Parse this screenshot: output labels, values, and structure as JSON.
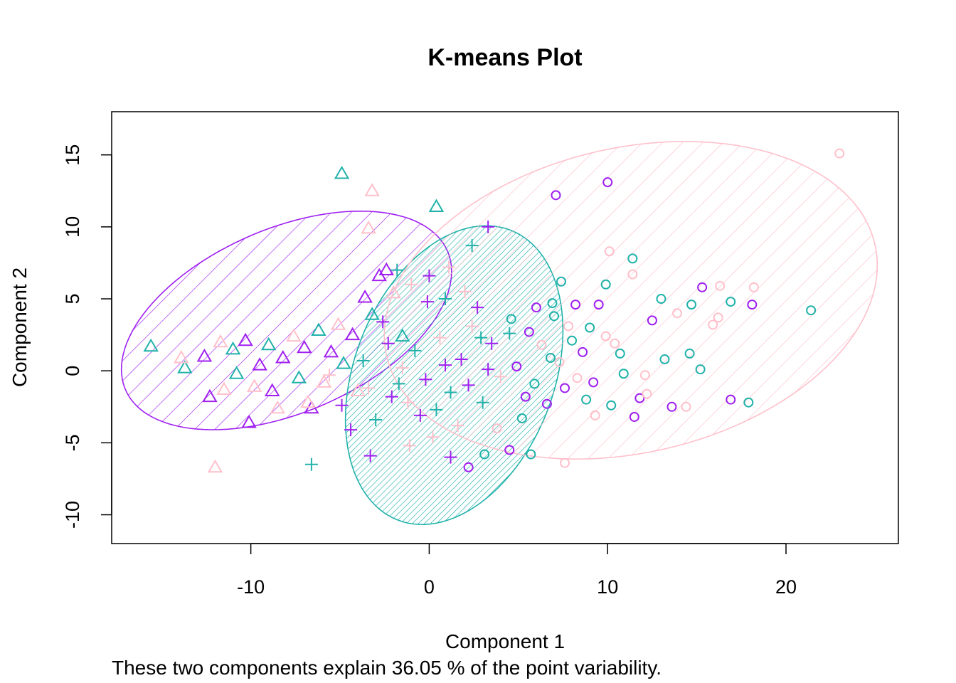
{
  "chart_data": {
    "type": "scatter",
    "title": "K-means Plot",
    "xlabel": "Component 1",
    "ylabel": "Component 2",
    "subtitle": "These two components explain 36.05 % of the point variability.",
    "xlim": [
      -17.8,
      26.3
    ],
    "ylim": [
      -12.0,
      18.0
    ],
    "x_ticks": [
      -10,
      0,
      10,
      20
    ],
    "x_tick_labels": [
      "-10",
      "0",
      "10",
      "20"
    ],
    "y_ticks": [
      -10,
      -5,
      0,
      5,
      10,
      15
    ],
    "y_tick_labels": [
      "-10",
      "-5",
      "0",
      "5",
      "10",
      "15"
    ],
    "grid": false,
    "legend": "none",
    "colors": {
      "purple": "#a020f0",
      "teal": "#20b2aa",
      "pink": "#ffc0cb",
      "axis": "#000000"
    },
    "clusters": [
      {
        "id": 1,
        "symbol": "triangle",
        "ellipse": {
          "center": [
            -8.0,
            3.5
          ],
          "semi_axes": [
            10.3,
            6.1
          ],
          "angle_deg": 33,
          "color": "#a020f0",
          "shade_density": "sparse"
        },
        "points": [
          {
            "x": -15.6,
            "y": 1.7,
            "c": "teal"
          },
          {
            "x": -4.9,
            "y": 13.7,
            "c": "teal"
          },
          {
            "x": -3.2,
            "y": 12.5,
            "c": "pink"
          },
          {
            "x": 0.4,
            "y": 11.4,
            "c": "teal"
          },
          {
            "x": -3.4,
            "y": 9.9,
            "c": "pink"
          },
          {
            "x": -12.0,
            "y": -6.7,
            "c": "pink"
          },
          {
            "x": -10.1,
            "y": -3.6,
            "c": "purple"
          },
          {
            "x": -12.3,
            "y": -1.8,
            "c": "purple"
          },
          {
            "x": -13.7,
            "y": 0.2,
            "c": "teal"
          },
          {
            "x": -13.9,
            "y": 0.9,
            "c": "pink"
          },
          {
            "x": -12.6,
            "y": 1.0,
            "c": "purple"
          },
          {
            "x": -11.7,
            "y": 2.0,
            "c": "pink"
          },
          {
            "x": -11.0,
            "y": 1.5,
            "c": "teal"
          },
          {
            "x": -10.3,
            "y": 2.1,
            "c": "purple"
          },
          {
            "x": -9.5,
            "y": 0.4,
            "c": "purple"
          },
          {
            "x": -9.8,
            "y": -1.1,
            "c": "pink"
          },
          {
            "x": -9.0,
            "y": 1.8,
            "c": "teal"
          },
          {
            "x": -8.5,
            "y": -2.6,
            "c": "pink"
          },
          {
            "x": -8.2,
            "y": 0.9,
            "c": "purple"
          },
          {
            "x": -7.6,
            "y": 2.4,
            "c": "pink"
          },
          {
            "x": -7.3,
            "y": -0.5,
            "c": "teal"
          },
          {
            "x": -7.0,
            "y": 1.6,
            "c": "purple"
          },
          {
            "x": -6.6,
            "y": -2.6,
            "c": "purple"
          },
          {
            "x": -6.2,
            "y": 2.8,
            "c": "teal"
          },
          {
            "x": -5.9,
            "y": -0.8,
            "c": "pink"
          },
          {
            "x": -5.5,
            "y": 1.3,
            "c": "purple"
          },
          {
            "x": -5.1,
            "y": 3.2,
            "c": "pink"
          },
          {
            "x": -4.8,
            "y": 0.5,
            "c": "teal"
          },
          {
            "x": -4.3,
            "y": 2.5,
            "c": "purple"
          },
          {
            "x": -4.0,
            "y": -1.4,
            "c": "pink"
          },
          {
            "x": -3.6,
            "y": 5.1,
            "c": "purple"
          },
          {
            "x": -3.2,
            "y": 3.9,
            "c": "teal"
          },
          {
            "x": -2.8,
            "y": 6.6,
            "c": "purple"
          },
          {
            "x": -2.4,
            "y": 7.0,
            "c": "purple"
          },
          {
            "x": -2.0,
            "y": 5.4,
            "c": "pink"
          },
          {
            "x": -1.5,
            "y": 2.4,
            "c": "teal"
          },
          {
            "x": -6.8,
            "y": -2.2,
            "c": "pink"
          },
          {
            "x": -8.8,
            "y": -1.4,
            "c": "purple"
          },
          {
            "x": -10.8,
            "y": -0.2,
            "c": "teal"
          },
          {
            "x": -11.5,
            "y": -1.3,
            "c": "pink"
          }
        ]
      },
      {
        "id": 2,
        "symbol": "plus",
        "ellipse": {
          "center": [
            1.4,
            -0.3
          ],
          "semi_axes": [
            10.6,
            5.7
          ],
          "angle_deg": 76,
          "color": "#20b2aa",
          "shade_density": "dense"
        },
        "points": [
          {
            "x": 3.3,
            "y": 10.0,
            "c": "purple"
          },
          {
            "x": 2.4,
            "y": 8.7,
            "c": "teal"
          },
          {
            "x": 0.0,
            "y": 6.6,
            "c": "purple"
          },
          {
            "x": -1.0,
            "y": 6.0,
            "c": "pink"
          },
          {
            "x": -1.8,
            "y": 7.0,
            "c": "teal"
          },
          {
            "x": 1.1,
            "y": 7.2,
            "c": "pink"
          },
          {
            "x": -0.1,
            "y": 4.8,
            "c": "purple"
          },
          {
            "x": 0.9,
            "y": 5.0,
            "c": "teal"
          },
          {
            "x": 2.0,
            "y": 5.5,
            "c": "pink"
          },
          {
            "x": -3.3,
            "y": -5.9,
            "c": "purple"
          },
          {
            "x": -6.6,
            "y": -6.5,
            "c": "teal"
          },
          {
            "x": 1.2,
            "y": -6.0,
            "c": "purple"
          },
          {
            "x": -1.1,
            "y": -5.2,
            "c": "pink"
          },
          {
            "x": 0.2,
            "y": -4.6,
            "c": "pink"
          },
          {
            "x": -4.4,
            "y": -4.1,
            "c": "purple"
          },
          {
            "x": -3.0,
            "y": -3.4,
            "c": "teal"
          },
          {
            "x": -2.1,
            "y": -1.8,
            "c": "purple"
          },
          {
            "x": -1.5,
            "y": 0.2,
            "c": "pink"
          },
          {
            "x": -0.8,
            "y": 1.4,
            "c": "teal"
          },
          {
            "x": -0.2,
            "y": -0.6,
            "c": "purple"
          },
          {
            "x": 0.6,
            "y": 2.3,
            "c": "pink"
          },
          {
            "x": 1.2,
            "y": -1.5,
            "c": "teal"
          },
          {
            "x": 1.8,
            "y": 0.8,
            "c": "purple"
          },
          {
            "x": 2.4,
            "y": 3.1,
            "c": "pink"
          },
          {
            "x": 3.0,
            "y": -2.2,
            "c": "teal"
          },
          {
            "x": 3.5,
            "y": 1.9,
            "c": "purple"
          },
          {
            "x": 4.0,
            "y": -0.4,
            "c": "pink"
          },
          {
            "x": 4.5,
            "y": 2.6,
            "c": "teal"
          },
          {
            "x": 2.7,
            "y": 4.4,
            "c": "purple"
          },
          {
            "x": -2.6,
            "y": 3.4,
            "c": "purple"
          },
          {
            "x": -3.7,
            "y": 0.7,
            "c": "teal"
          },
          {
            "x": -4.9,
            "y": -2.4,
            "c": "purple"
          },
          {
            "x": -5.6,
            "y": -0.3,
            "c": "pink"
          },
          {
            "x": -0.5,
            "y": -3.1,
            "c": "purple"
          },
          {
            "x": 0.4,
            "y": -2.7,
            "c": "teal"
          },
          {
            "x": 1.6,
            "y": -3.8,
            "c": "pink"
          },
          {
            "x": 2.2,
            "y": -1.0,
            "c": "purple"
          },
          {
            "x": -1.2,
            "y": -2.2,
            "c": "pink"
          },
          {
            "x": -2.3,
            "y": 1.9,
            "c": "purple"
          },
          {
            "x": 0.9,
            "y": 0.4,
            "c": "purple"
          },
          {
            "x": -1.7,
            "y": -0.9,
            "c": "teal"
          },
          {
            "x": 3.3,
            "y": 0.1,
            "c": "purple"
          },
          {
            "x": -3.4,
            "y": -1.2,
            "c": "pink"
          },
          {
            "x": 2.9,
            "y": 2.3,
            "c": "teal"
          }
        ]
      },
      {
        "id": 3,
        "symbol": "circle",
        "ellipse": {
          "center": [
            11.3,
            4.9
          ],
          "semi_axes": [
            14.3,
            10.4
          ],
          "angle_deg": 22,
          "color": "#ffc0cb",
          "shade_density": "sparse"
        },
        "points": [
          {
            "x": 23.0,
            "y": 15.1,
            "c": "pink"
          },
          {
            "x": 7.1,
            "y": 12.2,
            "c": "purple"
          },
          {
            "x": 10.0,
            "y": 13.1,
            "c": "purple"
          },
          {
            "x": 10.1,
            "y": 8.3,
            "c": "pink"
          },
          {
            "x": 11.4,
            "y": 7.8,
            "c": "teal"
          },
          {
            "x": 11.4,
            "y": 6.7,
            "c": "pink"
          },
          {
            "x": 7.4,
            "y": 6.2,
            "c": "teal"
          },
          {
            "x": 9.9,
            "y": 6.0,
            "c": "teal"
          },
          {
            "x": 13.0,
            "y": 5.0,
            "c": "teal"
          },
          {
            "x": 14.7,
            "y": 4.6,
            "c": "teal"
          },
          {
            "x": 15.3,
            "y": 5.8,
            "c": "purple"
          },
          {
            "x": 16.3,
            "y": 5.9,
            "c": "pink"
          },
          {
            "x": 16.9,
            "y": 4.8,
            "c": "teal"
          },
          {
            "x": 18.1,
            "y": 4.6,
            "c": "purple"
          },
          {
            "x": 18.2,
            "y": 5.8,
            "c": "pink"
          },
          {
            "x": 21.4,
            "y": 4.2,
            "c": "teal"
          },
          {
            "x": 12.5,
            "y": 3.5,
            "c": "purple"
          },
          {
            "x": 13.9,
            "y": 4.0,
            "c": "pink"
          },
          {
            "x": 15.9,
            "y": 3.2,
            "c": "pink"
          },
          {
            "x": 16.2,
            "y": 3.7,
            "c": "pink"
          },
          {
            "x": 17.9,
            "y": -2.2,
            "c": "teal"
          },
          {
            "x": 16.9,
            "y": -2.0,
            "c": "purple"
          },
          {
            "x": 13.6,
            "y": -2.5,
            "c": "purple"
          },
          {
            "x": 14.4,
            "y": -2.5,
            "c": "pink"
          },
          {
            "x": 11.5,
            "y": -3.2,
            "c": "purple"
          },
          {
            "x": 15.2,
            "y": 0.1,
            "c": "teal"
          },
          {
            "x": 14.6,
            "y": 1.2,
            "c": "teal"
          },
          {
            "x": 13.2,
            "y": 0.8,
            "c": "teal"
          },
          {
            "x": 12.1,
            "y": -0.3,
            "c": "pink"
          },
          {
            "x": 11.8,
            "y": -1.9,
            "c": "purple"
          },
          {
            "x": 10.9,
            "y": -0.2,
            "c": "teal"
          },
          {
            "x": 10.7,
            "y": 1.2,
            "c": "teal"
          },
          {
            "x": 10.2,
            "y": -2.4,
            "c": "teal"
          },
          {
            "x": 9.9,
            "y": 2.4,
            "c": "pink"
          },
          {
            "x": 9.5,
            "y": 4.6,
            "c": "purple"
          },
          {
            "x": 9.0,
            "y": 3.0,
            "c": "teal"
          },
          {
            "x": 8.6,
            "y": 1.3,
            "c": "purple"
          },
          {
            "x": 8.3,
            "y": -0.5,
            "c": "pink"
          },
          {
            "x": 8.0,
            "y": 2.1,
            "c": "teal"
          },
          {
            "x": 7.6,
            "y": -1.2,
            "c": "purple"
          },
          {
            "x": 7.3,
            "y": 0.6,
            "c": "pink"
          },
          {
            "x": 7.0,
            "y": 3.8,
            "c": "teal"
          },
          {
            "x": 6.6,
            "y": -2.3,
            "c": "purple"
          },
          {
            "x": 6.3,
            "y": 1.8,
            "c": "pink"
          },
          {
            "x": 5.9,
            "y": -0.9,
            "c": "teal"
          },
          {
            "x": 5.6,
            "y": 2.7,
            "c": "purple"
          },
          {
            "x": 5.2,
            "y": -3.3,
            "c": "teal"
          },
          {
            "x": 4.9,
            "y": 0.3,
            "c": "purple"
          },
          {
            "x": 4.5,
            "y": -5.5,
            "c": "purple"
          },
          {
            "x": 3.1,
            "y": -5.8,
            "c": "teal"
          },
          {
            "x": 2.2,
            "y": -6.7,
            "c": "purple"
          },
          {
            "x": 5.7,
            "y": -5.8,
            "c": "teal"
          },
          {
            "x": 7.6,
            "y": -6.4,
            "c": "pink"
          },
          {
            "x": 9.3,
            "y": -3.1,
            "c": "pink"
          },
          {
            "x": 12.2,
            "y": -1.6,
            "c": "pink"
          },
          {
            "x": 6.9,
            "y": 4.7,
            "c": "teal"
          },
          {
            "x": 8.2,
            "y": 4.6,
            "c": "purple"
          },
          {
            "x": 7.8,
            "y": 3.1,
            "c": "pink"
          },
          {
            "x": 6.0,
            "y": 4.4,
            "c": "purple"
          },
          {
            "x": 4.6,
            "y": 3.6,
            "c": "teal"
          },
          {
            "x": 9.2,
            "y": -0.8,
            "c": "purple"
          },
          {
            "x": 10.4,
            "y": 1.9,
            "c": "pink"
          },
          {
            "x": 8.8,
            "y": -2.0,
            "c": "teal"
          },
          {
            "x": 3.8,
            "y": -4.0,
            "c": "pink"
          },
          {
            "x": 5.4,
            "y": -1.8,
            "c": "purple"
          },
          {
            "x": 6.8,
            "y": 0.9,
            "c": "teal"
          }
        ]
      }
    ]
  }
}
